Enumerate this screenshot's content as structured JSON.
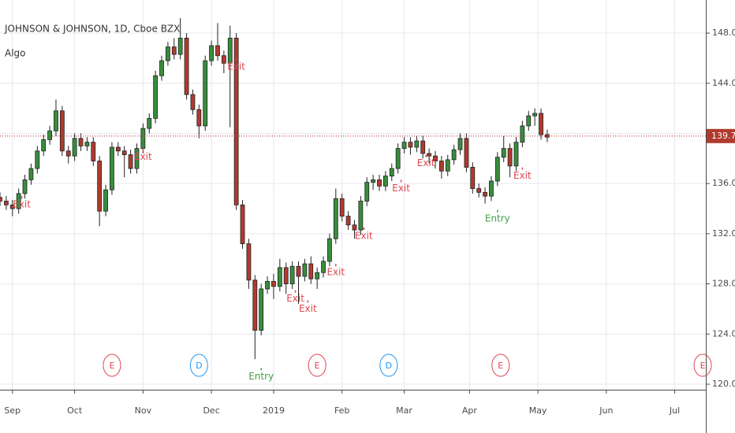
{
  "chart_data": {
    "type": "candlestick",
    "title": "JOHNSON & JOHNSON, 1D, Cboe BZX",
    "indicator": "Algo",
    "up_color": "#388e3c",
    "down_color": "#b03a2e",
    "xlim": [
      -4,
      223
    ],
    "ylim": [
      119.56,
      150.64
    ],
    "grid": true,
    "xticks": [
      {
        "value": 0,
        "label": "Sep"
      },
      {
        "value": 20,
        "label": "Oct"
      },
      {
        "value": 42,
        "label": "Nov"
      },
      {
        "value": 64,
        "label": "Dec"
      },
      {
        "value": 84,
        "label": "2019"
      },
      {
        "value": 106,
        "label": "Feb"
      },
      {
        "value": 126,
        "label": "Mar"
      },
      {
        "value": 147,
        "label": "Apr"
      },
      {
        "value": 169,
        "label": "May"
      },
      {
        "value": 191,
        "label": "Jun"
      },
      {
        "value": 213,
        "label": "Jul"
      }
    ],
    "yticks": [
      {
        "value": 120,
        "label": "120.00"
      },
      {
        "value": 124,
        "label": "124.00"
      },
      {
        "value": 128,
        "label": "128.00"
      },
      {
        "value": 132,
        "label": "132.00"
      },
      {
        "value": 136,
        "label": "136.00"
      },
      {
        "value": 140,
        "label": "140.00"
      },
      {
        "value": 144,
        "label": "144.00"
      },
      {
        "value": 148,
        "label": "148.00"
      }
    ],
    "last_price": 139.79,
    "x": [
      -4,
      -2,
      0,
      2,
      4,
      6,
      8,
      10,
      12,
      14,
      16,
      18,
      20,
      22,
      24,
      26,
      28,
      30,
      32,
      34,
      36,
      38,
      40,
      42,
      44,
      46,
      48,
      50,
      52,
      54,
      56,
      58,
      60,
      62,
      64,
      66,
      68,
      70,
      72,
      74,
      76,
      78,
      80,
      82,
      84,
      86,
      88,
      90,
      92,
      94,
      96,
      98,
      100,
      102,
      104,
      106,
      108,
      110,
      112,
      114,
      116,
      118,
      120,
      122,
      124,
      126,
      128,
      130,
      132,
      134,
      136,
      138,
      140,
      142,
      144,
      146,
      148,
      150,
      152,
      154,
      156,
      158,
      160,
      162,
      164,
      166,
      168,
      170,
      172
    ],
    "open": [
      134.9,
      134.6,
      134.3,
      134.0,
      135.2,
      136.3,
      137.2,
      138.6,
      139.5,
      140.2,
      141.8,
      138.6,
      138.2,
      139.6,
      139.0,
      139.3,
      137.8,
      133.8,
      135.5,
      138.9,
      138.6,
      138.3,
      137.2,
      138.8,
      140.4,
      141.2,
      144.6,
      145.8,
      146.9,
      146.3,
      147.6,
      143.1,
      141.9,
      140.6,
      145.8,
      147.0,
      146.2,
      145.6,
      147.6,
      134.3,
      131.2,
      128.3,
      124.3,
      127.6,
      128.2,
      127.8,
      129.3,
      128.0,
      129.4,
      128.6,
      129.6,
      128.4,
      128.9,
      129.8,
      131.6,
      134.8,
      133.4,
      132.7,
      132.3,
      134.6,
      136.1,
      136.3,
      135.8,
      136.6,
      137.2,
      138.8,
      139.3,
      138.9,
      139.4,
      138.4,
      138.2,
      137.8,
      137.0,
      137.9,
      138.7,
      139.6,
      137.3,
      135.6,
      135.3,
      135.0,
      136.2,
      138.1,
      138.8,
      137.4,
      139.3,
      140.6,
      141.4,
      141.6,
      139.9
    ],
    "high": [
      135.3,
      135.0,
      134.7,
      135.6,
      136.7,
      137.6,
      139.0,
      139.9,
      140.6,
      142.7,
      142.2,
      139.0,
      140.0,
      140.0,
      139.7,
      139.7,
      138.2,
      135.9,
      139.3,
      139.3,
      139.0,
      138.7,
      139.2,
      140.8,
      141.6,
      145.0,
      146.2,
      147.3,
      147.6,
      149.2,
      148.0,
      143.5,
      142.3,
      146.2,
      147.4,
      148.8,
      146.6,
      148.6,
      148.0,
      134.7,
      131.6,
      128.7,
      128.0,
      128.6,
      128.8,
      130.0,
      129.7,
      129.8,
      129.8,
      130.0,
      130.2,
      129.3,
      130.2,
      132.0,
      135.6,
      135.2,
      133.8,
      133.1,
      135.0,
      136.5,
      136.7,
      136.7,
      137.0,
      137.6,
      139.2,
      139.7,
      139.7,
      139.8,
      139.8,
      138.8,
      138.6,
      138.2,
      138.3,
      139.1,
      140.0,
      140.0,
      137.7,
      136.0,
      135.7,
      136.6,
      138.5,
      139.8,
      139.2,
      139.7,
      141.0,
      141.8,
      142.0,
      142.0,
      140.3
    ],
    "low": [
      134.2,
      133.9,
      133.4,
      133.6,
      134.8,
      135.9,
      136.8,
      138.2,
      139.1,
      139.8,
      138.2,
      137.6,
      137.8,
      138.6,
      138.6,
      137.4,
      132.6,
      133.4,
      135.1,
      138.2,
      136.5,
      136.8,
      136.8,
      138.4,
      140.0,
      140.8,
      144.2,
      145.4,
      145.9,
      145.9,
      142.7,
      141.5,
      139.6,
      140.2,
      145.4,
      145.8,
      144.8,
      140.5,
      133.9,
      130.8,
      127.6,
      122.0,
      123.9,
      127.2,
      126.8,
      127.4,
      127.2,
      127.6,
      126.4,
      128.2,
      128.0,
      127.6,
      128.5,
      129.4,
      131.2,
      133.0,
      132.3,
      131.6,
      131.9,
      134.2,
      135.5,
      135.4,
      135.4,
      136.2,
      136.8,
      138.4,
      138.3,
      138.5,
      138.0,
      137.6,
      137.2,
      136.4,
      136.6,
      137.5,
      138.3,
      136.9,
      135.2,
      134.9,
      134.4,
      134.6,
      135.8,
      137.7,
      136.5,
      137.0,
      138.9,
      140.2,
      140.6,
      139.5,
      139.3
    ],
    "close": [
      134.6,
      134.3,
      134.0,
      135.2,
      136.3,
      137.2,
      138.6,
      139.5,
      140.2,
      141.8,
      138.6,
      138.2,
      139.6,
      139.0,
      139.3,
      137.8,
      133.8,
      135.5,
      138.9,
      138.6,
      138.3,
      137.2,
      138.8,
      140.4,
      141.2,
      144.6,
      145.8,
      146.9,
      146.3,
      147.6,
      143.1,
      141.9,
      140.6,
      145.8,
      147.0,
      146.2,
      145.6,
      147.6,
      134.3,
      131.2,
      128.3,
      124.3,
      127.6,
      128.2,
      127.8,
      129.3,
      128.0,
      129.4,
      128.6,
      129.6,
      128.4,
      128.9,
      129.8,
      131.6,
      134.8,
      133.4,
      132.7,
      132.3,
      134.6,
      136.1,
      136.3,
      135.8,
      136.6,
      137.2,
      138.8,
      139.3,
      138.9,
      139.4,
      138.4,
      138.2,
      137.8,
      137.0,
      137.9,
      138.7,
      139.6,
      137.3,
      135.6,
      135.3,
      135.0,
      136.2,
      138.1,
      138.8,
      137.4,
      139.3,
      140.6,
      141.4,
      141.6,
      139.9,
      139.7
    ],
    "signals": [
      {
        "text": "Exit",
        "x": 3,
        "y": 134.3,
        "color": "#e0454f"
      },
      {
        "text": "Exit",
        "x": 42,
        "y": 138.1,
        "color": "#e0454f"
      },
      {
        "text": "Exit",
        "x": 72,
        "y": 145.3,
        "color": "#e0454f"
      },
      {
        "text": "Entry",
        "x": 80,
        "y": 120.6,
        "color": "#43a047"
      },
      {
        "text": "Exit",
        "x": 91,
        "y": 126.8,
        "color": "#e0454f"
      },
      {
        "text": "Exit",
        "x": 95,
        "y": 126.0,
        "color": "#e0454f"
      },
      {
        "text": "Exit",
        "x": 104,
        "y": 128.9,
        "color": "#e0454f"
      },
      {
        "text": "Exit",
        "x": 113,
        "y": 131.8,
        "color": "#e0454f"
      },
      {
        "text": "Exit",
        "x": 125,
        "y": 135.6,
        "color": "#e0454f"
      },
      {
        "text": "Exit",
        "x": 133,
        "y": 137.6,
        "color": "#e0454f"
      },
      {
        "text": "Entry",
        "x": 156,
        "y": 133.2,
        "color": "#43a047"
      },
      {
        "text": "Exit",
        "x": 164,
        "y": 136.6,
        "color": "#e0454f"
      }
    ],
    "events": [
      {
        "text": "E",
        "x": 32,
        "color": "#e0454f"
      },
      {
        "text": "D",
        "x": 60,
        "color": "#2196f3"
      },
      {
        "text": "E",
        "x": 98,
        "color": "#e0454f"
      },
      {
        "text": "D",
        "x": 121,
        "color": "#2196f3"
      },
      {
        "text": "E",
        "x": 157,
        "color": "#e0454f"
      },
      {
        "text": "E",
        "x": 222,
        "color": "#e0454f"
      }
    ]
  }
}
